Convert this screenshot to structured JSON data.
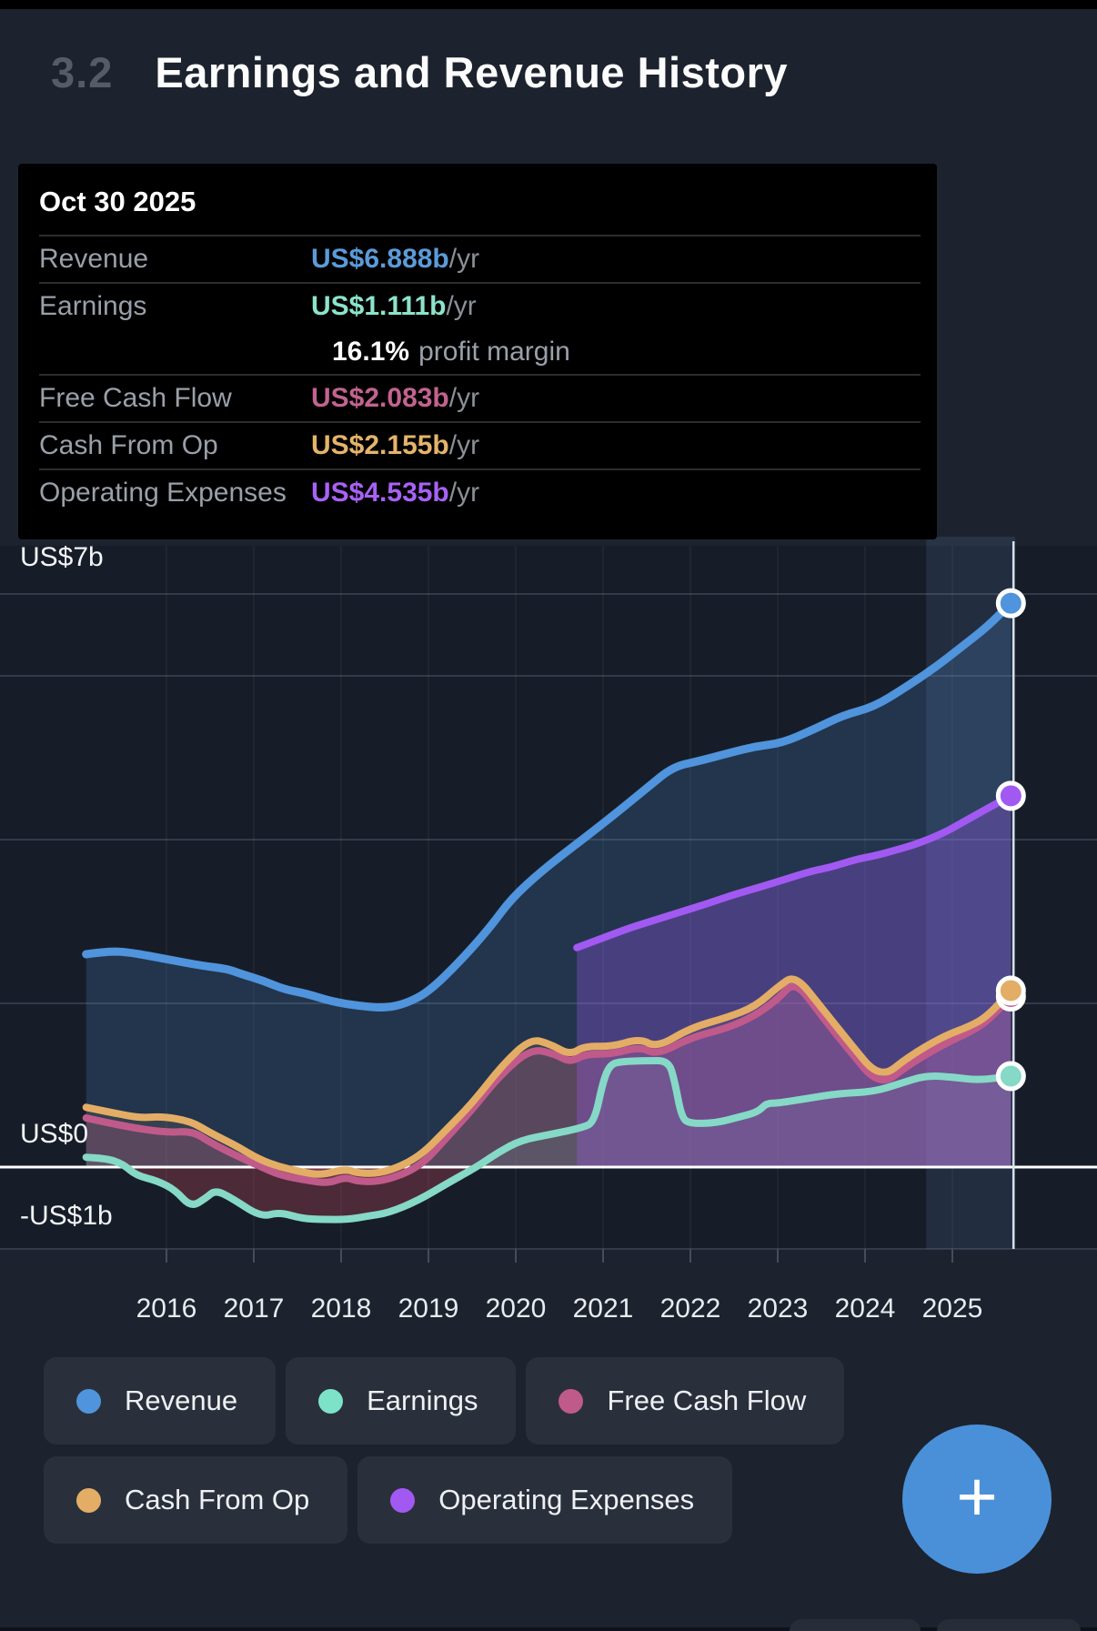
{
  "header": {
    "section_number": "3.2",
    "title": "Earnings and Revenue History"
  },
  "tooltip": {
    "date": "Oct 30 2025",
    "rows": [
      {
        "label": "Revenue",
        "value": "US$6.888b",
        "suffix": " /yr",
        "color": "#5b9bd9"
      },
      {
        "label": "Earnings",
        "value": "US$1.111b",
        "suffix": " /yr",
        "color": "#8ce3cb"
      },
      {
        "label": "Free Cash Flow",
        "value": "US$2.083b",
        "suffix": " /yr",
        "color": "#c2638f"
      },
      {
        "label": "Cash From Op",
        "value": "US$2.155b",
        "suffix": " /yr",
        "color": "#e5b36a"
      },
      {
        "label": "Operating Expenses",
        "value": "US$4.535b",
        "suffix": " /yr",
        "color": "#a861f5"
      }
    ],
    "profit_margin": {
      "value": "16.1%",
      "label": "profit margin"
    }
  },
  "chart_data": {
    "type": "area",
    "title": "Earnings and Revenue History",
    "x_axis": {
      "tick_labels": [
        "2016",
        "2017",
        "2018",
        "2019",
        "2020",
        "2021",
        "2022",
        "2023",
        "2024",
        "2025"
      ],
      "tick_years": [
        2016,
        2017,
        2018,
        2019,
        2020,
        2021,
        2022,
        2023,
        2024,
        2025
      ],
      "domain": [
        2015.05,
        2025.78
      ]
    },
    "y_axis": {
      "unit": "US$ billions",
      "domain": [
        -1,
        7
      ],
      "gridline_values": [
        7,
        6,
        4,
        2,
        -1
      ],
      "zero_line_value": 0,
      "labels": [
        {
          "text": "US$7b",
          "value": 7
        },
        {
          "text": "US$0",
          "value": 0
        },
        {
          "text": "-US$1b",
          "value": -1
        }
      ]
    },
    "highlight_band_years": [
      2024.7,
      2025.72
    ],
    "crosshair_year": 2025.7,
    "grid_color": "#333a48",
    "zero_line_color": "#ffffff",
    "plot_bg": "#171d28",
    "band_color": "rgba(110,150,210,0.14)",
    "crosshair_color": "#d7e0ea",
    "tick_color": "#454c5a",
    "series": [
      {
        "name": "Revenue",
        "color": "#4f94dc",
        "fill": "rgba(79,148,220,0.20)",
        "end_value": 6.888,
        "points": [
          [
            2015.08,
            2.6
          ],
          [
            2015.35,
            2.64
          ],
          [
            2015.6,
            2.62
          ],
          [
            2016.0,
            2.54
          ],
          [
            2016.4,
            2.46
          ],
          [
            2016.7,
            2.42
          ],
          [
            2016.85,
            2.36
          ],
          [
            2017.1,
            2.28
          ],
          [
            2017.35,
            2.17
          ],
          [
            2017.6,
            2.12
          ],
          [
            2017.9,
            2.02
          ],
          [
            2018.2,
            1.97
          ],
          [
            2018.5,
            1.94
          ],
          [
            2018.75,
            2.0
          ],
          [
            2019.0,
            2.14
          ],
          [
            2019.35,
            2.5
          ],
          [
            2019.7,
            2.92
          ],
          [
            2019.95,
            3.28
          ],
          [
            2020.3,
            3.62
          ],
          [
            2020.7,
            3.95
          ],
          [
            2021.1,
            4.28
          ],
          [
            2021.5,
            4.63
          ],
          [
            2021.8,
            4.89
          ],
          [
            2022.1,
            4.96
          ],
          [
            2022.45,
            5.06
          ],
          [
            2022.75,
            5.14
          ],
          [
            2023.05,
            5.18
          ],
          [
            2023.4,
            5.34
          ],
          [
            2023.75,
            5.52
          ],
          [
            2024.1,
            5.62
          ],
          [
            2024.45,
            5.85
          ],
          [
            2024.8,
            6.1
          ],
          [
            2025.1,
            6.35
          ],
          [
            2025.4,
            6.6
          ],
          [
            2025.67,
            6.888
          ]
        ]
      },
      {
        "name": "Free Cash Flow",
        "color": "#c05a8a",
        "fill": "rgba(192,90,138,0.26)",
        "end_value": 2.083,
        "points": [
          [
            2015.08,
            0.6
          ],
          [
            2015.5,
            0.5
          ],
          [
            2016.0,
            0.42
          ],
          [
            2016.3,
            0.44
          ],
          [
            2016.5,
            0.3
          ],
          [
            2016.8,
            0.14
          ],
          [
            2017.05,
            0.02
          ],
          [
            2017.3,
            -0.1
          ],
          [
            2017.6,
            -0.16
          ],
          [
            2017.85,
            -0.2
          ],
          [
            2018.05,
            -0.12
          ],
          [
            2018.2,
            -0.18
          ],
          [
            2018.5,
            -0.17
          ],
          [
            2018.9,
            0.0
          ],
          [
            2019.2,
            0.35
          ],
          [
            2019.5,
            0.7
          ],
          [
            2019.8,
            1.1
          ],
          [
            2020.17,
            1.45
          ],
          [
            2020.45,
            1.38
          ],
          [
            2020.62,
            1.28
          ],
          [
            2020.8,
            1.38
          ],
          [
            2021.1,
            1.38
          ],
          [
            2021.42,
            1.47
          ],
          [
            2021.62,
            1.37
          ],
          [
            2022.0,
            1.58
          ],
          [
            2022.43,
            1.7
          ],
          [
            2022.74,
            1.85
          ],
          [
            2023.0,
            2.05
          ],
          [
            2023.2,
            2.28
          ],
          [
            2023.5,
            1.85
          ],
          [
            2023.8,
            1.45
          ],
          [
            2024.17,
            0.98
          ],
          [
            2024.5,
            1.25
          ],
          [
            2024.9,
            1.5
          ],
          [
            2025.2,
            1.65
          ],
          [
            2025.4,
            1.78
          ],
          [
            2025.67,
            2.083
          ]
        ]
      },
      {
        "name": "Cash From Op",
        "color": "#e3ad66",
        "fill": "rgba(227,173,102,0.10)",
        "end_value": 2.155,
        "points": [
          [
            2015.08,
            0.73
          ],
          [
            2015.4,
            0.66
          ],
          [
            2015.7,
            0.6
          ],
          [
            2015.95,
            0.62
          ],
          [
            2016.28,
            0.56
          ],
          [
            2016.5,
            0.42
          ],
          [
            2016.8,
            0.26
          ],
          [
            2017.05,
            0.1
          ],
          [
            2017.3,
            0.0
          ],
          [
            2017.55,
            -0.06
          ],
          [
            2017.77,
            -0.1
          ],
          [
            2018.05,
            -0.02
          ],
          [
            2018.2,
            -0.08
          ],
          [
            2018.5,
            -0.07
          ],
          [
            2018.88,
            0.11
          ],
          [
            2019.2,
            0.45
          ],
          [
            2019.51,
            0.79
          ],
          [
            2019.85,
            1.25
          ],
          [
            2020.17,
            1.57
          ],
          [
            2020.4,
            1.5
          ],
          [
            2020.62,
            1.37
          ],
          [
            2020.79,
            1.48
          ],
          [
            2021.1,
            1.47
          ],
          [
            2021.42,
            1.57
          ],
          [
            2021.62,
            1.46
          ],
          [
            2022.0,
            1.7
          ],
          [
            2022.43,
            1.83
          ],
          [
            2022.74,
            1.96
          ],
          [
            2023.0,
            2.2
          ],
          [
            2023.2,
            2.35
          ],
          [
            2023.5,
            1.95
          ],
          [
            2023.8,
            1.55
          ],
          [
            2024.17,
            1.07
          ],
          [
            2024.5,
            1.35
          ],
          [
            2024.9,
            1.6
          ],
          [
            2025.2,
            1.72
          ],
          [
            2025.4,
            1.84
          ],
          [
            2025.67,
            2.155
          ]
        ]
      },
      {
        "name": "Earnings",
        "color": "#85d9c6",
        "fill": "rgba(130,216,198,0.10)",
        "fill_negative": "rgba(190,70,90,0.32)",
        "end_value": 1.111,
        "points": [
          [
            2015.08,
            0.12
          ],
          [
            2015.3,
            0.11
          ],
          [
            2015.5,
            0.04
          ],
          [
            2015.65,
            -0.1
          ],
          [
            2015.9,
            -0.17
          ],
          [
            2016.1,
            -0.28
          ],
          [
            2016.28,
            -0.49
          ],
          [
            2016.45,
            -0.38
          ],
          [
            2016.56,
            -0.28
          ],
          [
            2016.75,
            -0.38
          ],
          [
            2017.08,
            -0.61
          ],
          [
            2017.29,
            -0.55
          ],
          [
            2017.56,
            -0.63
          ],
          [
            2017.8,
            -0.64
          ],
          [
            2018.08,
            -0.64
          ],
          [
            2018.3,
            -0.6
          ],
          [
            2018.54,
            -0.56
          ],
          [
            2018.88,
            -0.41
          ],
          [
            2019.23,
            -0.19
          ],
          [
            2019.55,
            0.0
          ],
          [
            2019.8,
            0.18
          ],
          [
            2020.06,
            0.33
          ],
          [
            2020.4,
            0.4
          ],
          [
            2020.76,
            0.48
          ],
          [
            2020.9,
            0.55
          ],
          [
            2021.0,
            1.05
          ],
          [
            2021.08,
            1.25
          ],
          [
            2021.2,
            1.29
          ],
          [
            2021.5,
            1.3
          ],
          [
            2021.75,
            1.3
          ],
          [
            2021.82,
            1.05
          ],
          [
            2021.9,
            0.6
          ],
          [
            2022.0,
            0.53
          ],
          [
            2022.3,
            0.54
          ],
          [
            2022.55,
            0.61
          ],
          [
            2022.77,
            0.67
          ],
          [
            2022.87,
            0.78
          ],
          [
            2023.0,
            0.78
          ],
          [
            2023.35,
            0.84
          ],
          [
            2023.7,
            0.9
          ],
          [
            2024.1,
            0.92
          ],
          [
            2024.4,
            1.02
          ],
          [
            2024.7,
            1.12
          ],
          [
            2025.0,
            1.1
          ],
          [
            2025.3,
            1.06
          ],
          [
            2025.67,
            1.111
          ]
        ]
      },
      {
        "name": "Operating Expenses",
        "color": "#a259f2",
        "fill": "rgba(162,89,242,0.30)",
        "end_value": 4.535,
        "points": [
          [
            2020.7,
            2.68
          ],
          [
            2021.0,
            2.8
          ],
          [
            2021.3,
            2.92
          ],
          [
            2021.6,
            3.02
          ],
          [
            2021.9,
            3.12
          ],
          [
            2022.2,
            3.22
          ],
          [
            2022.5,
            3.33
          ],
          [
            2022.8,
            3.42
          ],
          [
            2023.1,
            3.52
          ],
          [
            2023.4,
            3.62
          ],
          [
            2023.6,
            3.66
          ],
          [
            2023.9,
            3.76
          ],
          [
            2024.1,
            3.8
          ],
          [
            2024.35,
            3.87
          ],
          [
            2024.6,
            3.95
          ],
          [
            2024.9,
            4.08
          ],
          [
            2025.1,
            4.2
          ],
          [
            2025.4,
            4.38
          ],
          [
            2025.67,
            4.535
          ]
        ]
      }
    ],
    "legend": [
      "Revenue",
      "Earnings",
      "Free Cash Flow",
      "Cash From Op",
      "Operating Expenses"
    ]
  },
  "legend": {
    "items": [
      {
        "label": "Revenue",
        "color": "#4f94dc"
      },
      {
        "label": "Earnings",
        "color": "#7de3c8"
      },
      {
        "label": "Free Cash Flow",
        "color": "#c05a8a"
      },
      {
        "label": "Cash From Op",
        "color": "#e3ad66"
      },
      {
        "label": "Operating Expenses",
        "color": "#a259f2"
      }
    ]
  },
  "fab": {
    "label": "+"
  }
}
